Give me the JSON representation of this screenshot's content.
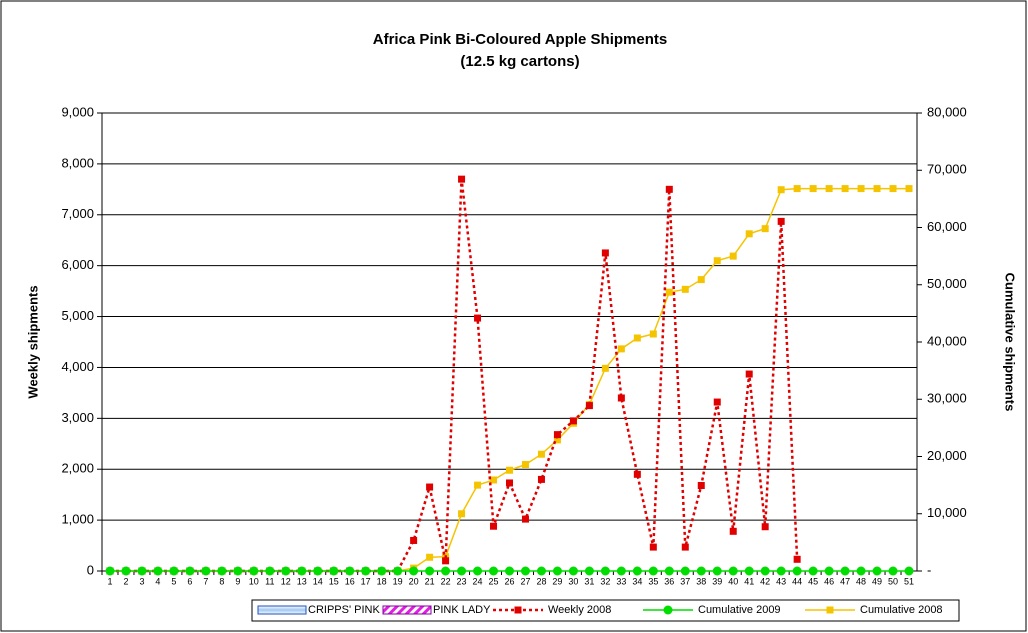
{
  "chart_data": {
    "type": "line",
    "title": [
      "Africa Pink Bi-Coloured Apple Shipments",
      "(12.5 kg cartons)"
    ],
    "y_label": "Weekly shipments",
    "y2_label": "Cumulative shipments",
    "categories": [
      "1",
      "2",
      "3",
      "4",
      "5",
      "6",
      "7",
      "8",
      "9",
      "10",
      "11",
      "12",
      "13",
      "14",
      "15",
      "16",
      "17",
      "18",
      "19",
      "20",
      "21",
      "22",
      "23",
      "24",
      "25",
      "26",
      "27",
      "28",
      "29",
      "30",
      "31",
      "32",
      "33",
      "34",
      "35",
      "36",
      "37",
      "38",
      "39",
      "40",
      "41",
      "42",
      "43",
      "44",
      "45",
      "46",
      "47",
      "48",
      "49",
      "50",
      "51"
    ],
    "ylim": [
      0,
      9000
    ],
    "yticks": [
      0,
      {
        "value": 1000,
        "label": "1,000"
      },
      {
        "value": 2000,
        "label": "2,000"
      },
      {
        "value": 3000,
        "label": "3,000"
      },
      {
        "value": 4000,
        "label": "4,000"
      },
      {
        "value": 5000,
        "label": "5,000"
      },
      {
        "value": 6000,
        "label": "6,000"
      },
      {
        "value": 7000,
        "label": "7,000"
      },
      {
        "value": 8000,
        "label": "8,000"
      },
      {
        "value": 9000,
        "label": "9,000"
      }
    ],
    "y2lim": [
      0,
      80000
    ],
    "y2ticks": [
      {
        "value": 0,
        "label": "-"
      },
      {
        "value": 10000,
        "label": "10,000"
      },
      {
        "value": 20000,
        "label": "20,000"
      },
      {
        "value": 30000,
        "label": "30,000"
      },
      {
        "value": 40000,
        "label": "40,000"
      },
      {
        "value": 50000,
        "label": "50,000"
      },
      {
        "value": 60000,
        "label": "60,000"
      },
      {
        "value": 70000,
        "label": "70,000"
      },
      {
        "value": 80000,
        "label": "80,000"
      }
    ],
    "grid": true,
    "legend": "bottom",
    "series": [
      {
        "name": "CRIPPS' PINK",
        "type": "bar",
        "color": "#9ec8f0",
        "values": [
          0,
          0,
          0,
          0,
          0,
          0,
          0,
          0,
          0,
          0,
          0,
          0,
          0,
          0,
          0,
          0,
          0,
          0,
          0,
          0,
          0,
          0,
          0,
          0,
          0,
          0,
          0,
          0,
          0,
          0,
          0,
          0,
          0,
          0,
          0,
          0,
          0,
          0,
          0,
          0,
          0,
          0,
          0,
          0,
          0,
          0,
          0,
          0,
          0,
          0,
          0
        ]
      },
      {
        "name": "PINK LADY",
        "type": "bar",
        "color": "#e020e0",
        "values": [
          0,
          0,
          0,
          0,
          0,
          0,
          0,
          0,
          0,
          0,
          0,
          0,
          0,
          0,
          0,
          0,
          0,
          0,
          0,
          0,
          0,
          0,
          0,
          0,
          0,
          0,
          0,
          0,
          0,
          0,
          0,
          0,
          0,
          0,
          0,
          0,
          0,
          0,
          0,
          0,
          0,
          0,
          0,
          0,
          0,
          0,
          0,
          0,
          0,
          0,
          0
        ]
      },
      {
        "name": "Weekly 2008",
        "type": "line",
        "color": "#e00000",
        "dash": true,
        "marker": "square",
        "values": [
          0,
          0,
          0,
          0,
          0,
          0,
          0,
          0,
          0,
          0,
          0,
          0,
          0,
          0,
          0,
          0,
          0,
          0,
          0,
          600,
          1650,
          200,
          7700,
          4970,
          880,
          1730,
          1020,
          1800,
          2680,
          2950,
          3250,
          6250,
          3400,
          1900,
          470,
          7500,
          470,
          1680,
          3320,
          780,
          3870,
          870,
          6870,
          230,
          null,
          null,
          null,
          null,
          null,
          null,
          null
        ]
      },
      {
        "name": "Cumulative 2009",
        "type": "line",
        "color": "#00dd00",
        "marker": "circle",
        "axis": "y2",
        "values": [
          0,
          0,
          0,
          0,
          0,
          0,
          0,
          0,
          0,
          0,
          0,
          0,
          0,
          0,
          0,
          0,
          0,
          0,
          0,
          0,
          0,
          0,
          0,
          0,
          0,
          0,
          0,
          0,
          0,
          0,
          0,
          0,
          0,
          0,
          0,
          0,
          0,
          0,
          0,
          0,
          0,
          0,
          0,
          0,
          0,
          0,
          0,
          0,
          0,
          0,
          0
        ]
      },
      {
        "name": "Cumulative 2008",
        "type": "line",
        "color": "#f5c400",
        "marker": "square",
        "axis": "y2",
        "values": [
          0,
          0,
          0,
          0,
          0,
          0,
          0,
          0,
          0,
          0,
          0,
          0,
          0,
          0,
          0,
          0,
          0,
          0,
          0,
          500,
          2400,
          2500,
          10000,
          15000,
          15900,
          17600,
          18600,
          20400,
          22900,
          25800,
          29100,
          35400,
          38800,
          40700,
          41400,
          48700,
          49200,
          50900,
          54200,
          55000,
          58900,
          59800,
          66600,
          66800,
          66800,
          66800,
          66800,
          66800,
          66800,
          66800,
          66800
        ]
      }
    ]
  }
}
